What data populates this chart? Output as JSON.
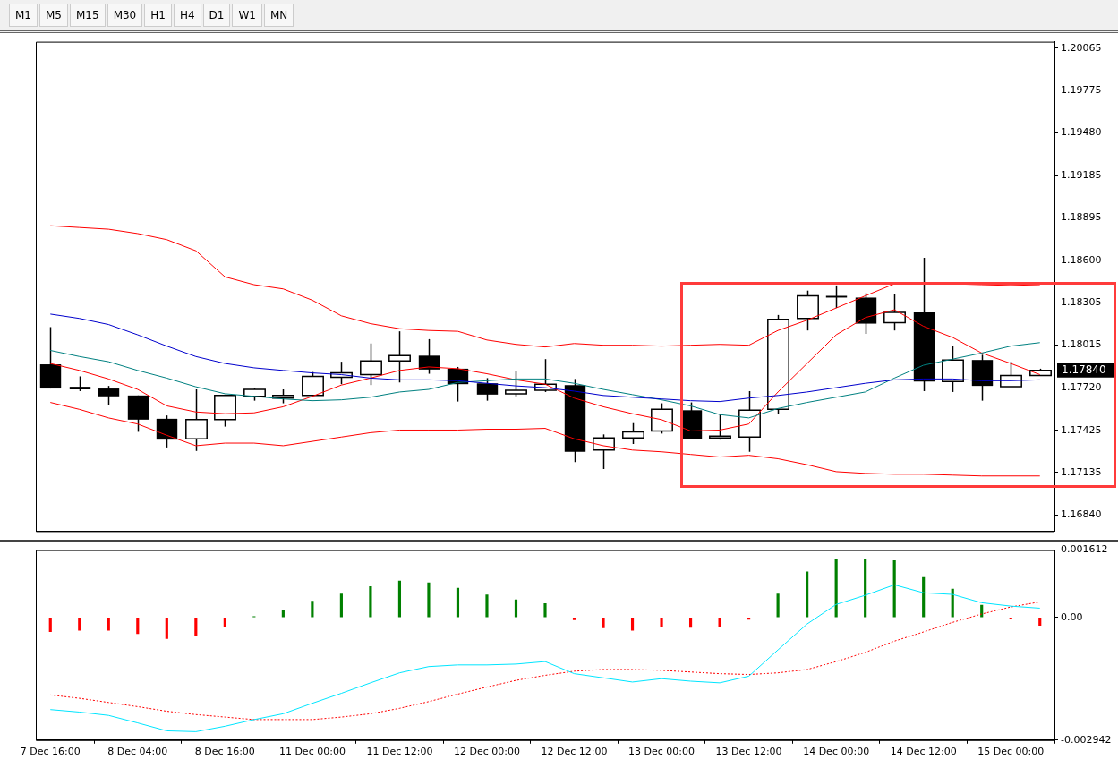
{
  "chart_data": [
    {
      "type": "candlestick",
      "annotations": [
        "M1",
        "M5",
        "M15",
        "M30",
        "H1",
        "H4",
        "D1",
        "W1",
        "MN"
      ],
      "categories": [
        null,
        null,
        null,
        null,
        null,
        null,
        null,
        null,
        null,
        null,
        null,
        null,
        null,
        null,
        null,
        null,
        null,
        null,
        null,
        null,
        null,
        null,
        null,
        null,
        null,
        null,
        null,
        null,
        null,
        null,
        null,
        null,
        null,
        null,
        null
      ],
      "ohlc": [
        [
          1.17882,
          1.18139,
          1.17715,
          1.17715
        ],
        [
          1.17727,
          1.17799,
          1.17697,
          1.17709
        ],
        [
          1.17715,
          1.17733,
          1.17601,
          1.17661
        ],
        [
          1.17667,
          1.17667,
          1.17416,
          1.175
        ],
        [
          1.17506,
          1.17529,
          1.17308,
          1.17362
        ],
        [
          1.17368,
          1.17709,
          1.17284,
          1.175
        ],
        [
          1.175,
          1.17673,
          1.17452,
          1.17667
        ],
        [
          1.17661,
          1.17715,
          1.17631,
          1.17709
        ],
        [
          1.17649,
          1.17709,
          1.17613,
          1.17667
        ],
        [
          1.17667,
          1.17829,
          1.17667,
          1.17799
        ],
        [
          1.17793,
          1.179,
          1.17745,
          1.17823
        ],
        [
          1.17811,
          1.18026,
          1.17739,
          1.17906
        ],
        [
          1.17906,
          1.1811,
          1.17757,
          1.17942
        ],
        [
          1.17942,
          1.18056,
          1.17817,
          1.17846
        ],
        [
          1.17852,
          1.17864,
          1.17625,
          1.17745
        ],
        [
          1.17751,
          1.17787,
          1.17631,
          1.17673
        ],
        [
          1.17679,
          1.17835,
          1.17661,
          1.17703
        ],
        [
          1.17703,
          1.17918,
          1.17691,
          1.17745
        ],
        [
          1.17739,
          1.17781,
          1.17207,
          1.17278
        ],
        [
          1.1729,
          1.17398,
          1.17159,
          1.17374
        ],
        [
          1.17374,
          1.17476,
          1.17332,
          1.17416
        ],
        [
          1.17422,
          1.17613,
          1.17404,
          1.17571
        ],
        [
          1.17565,
          1.17619,
          1.17368,
          1.17368
        ],
        [
          1.17374,
          1.17535,
          1.17362,
          1.17386
        ],
        [
          1.1738,
          1.17697,
          1.17278,
          1.17565
        ],
        [
          1.17571,
          1.18223,
          1.17541,
          1.18193
        ],
        [
          1.18199,
          1.18391,
          1.18116,
          1.18355
        ],
        [
          1.18355,
          1.18427,
          1.18271,
          1.18343
        ],
        [
          1.18343,
          1.18373,
          1.18092,
          1.18163
        ],
        [
          1.18169,
          1.18367,
          1.18116,
          1.18241
        ],
        [
          1.18241,
          1.18618,
          1.17697,
          1.17763
        ],
        [
          1.17763,
          1.18008,
          1.17691,
          1.17912
        ],
        [
          1.17912,
          1.17948,
          1.17631,
          1.17733
        ],
        [
          1.17727,
          1.179,
          1.17727,
          1.17805
        ],
        [
          1.17805,
          1.17852,
          1.17805,
          1.1784
        ]
      ],
      "series": [
        {
          "type": "line",
          "color": "#ff0000",
          "values": [
            1.18839,
            1.18827,
            1.18815,
            1.18785,
            1.18743,
            1.18666,
            1.18486,
            1.18432,
            1.18403,
            1.18325,
            1.18217,
            1.18163,
            1.18128,
            1.18116,
            1.1811,
            1.1805,
            1.1802,
            1.18002,
            1.18026,
            1.18014,
            1.18014,
            1.18008,
            1.18014,
            1.1802,
            1.18014,
            1.18116,
            1.18187,
            1.18271,
            1.18355,
            1.18438,
            1.18438,
            1.18438,
            1.18432,
            1.18427,
            1.18432
          ]
        },
        {
          "type": "line",
          "color": "#ff0000",
          "values": [
            1.17619,
            1.17571,
            1.17512,
            1.1747,
            1.17392,
            1.1732,
            1.17338,
            1.17338,
            1.1732,
            1.1735,
            1.1738,
            1.1741,
            1.17428,
            1.17428,
            1.17428,
            1.17434,
            1.17434,
            1.1744,
            1.17368,
            1.1732,
            1.1729,
            1.17278,
            1.1726,
            1.17242,
            1.17254,
            1.1723,
            1.17189,
            1.17141,
            1.17129,
            1.17123,
            1.17123,
            1.17117,
            1.17111,
            1.17111,
            1.17111
          ]
        },
        {
          "type": "line",
          "color": "#0000cc",
          "values": [
            1.18229,
            1.18199,
            1.18157,
            1.18086,
            1.18008,
            1.17936,
            1.17888,
            1.17858,
            1.1784,
            1.17823,
            1.17811,
            1.17787,
            1.17775,
            1.17775,
            1.17769,
            1.17751,
            1.17733,
            1.17721,
            1.17697,
            1.17667,
            1.17655,
            1.17643,
            1.17631,
            1.17625,
            1.17649,
            1.17667,
            1.17691,
            1.17721,
            1.17751,
            1.17775,
            1.17781,
            1.17781,
            1.17769,
            1.17769,
            1.17775
          ]
        },
        {
          "type": "line",
          "color": "#008080",
          "values": [
            1.17978,
            1.17936,
            1.179,
            1.1784,
            1.17787,
            1.17727,
            1.17679,
            1.17661,
            1.17643,
            1.17631,
            1.17637,
            1.17655,
            1.17691,
            1.17709,
            1.17757,
            1.17769,
            1.17781,
            1.17781,
            1.17751,
            1.17709,
            1.17673,
            1.17637,
            1.17595,
            1.17535,
            1.17512,
            1.17577,
            1.17619,
            1.17655,
            1.17691,
            1.17787,
            1.17876,
            1.17918,
            1.1796,
            1.18008,
            1.18032
          ]
        },
        {
          "type": "line",
          "color": "#ff0000",
          "values": [
            1.17888,
            1.1784,
            1.17781,
            1.17709,
            1.17595,
            1.17553,
            1.17541,
            1.17547,
            1.17589,
            1.17661,
            1.17739,
            1.17787,
            1.1784,
            1.17864,
            1.17852,
            1.17817,
            1.17775,
            1.17745,
            1.17649,
            1.17589,
            1.17541,
            1.175,
            1.17422,
            1.17428,
            1.1747,
            1.17691,
            1.17888,
            1.18086,
            1.18205,
            1.18259,
            1.18145,
            1.18068,
            1.1796,
            1.17888,
            1.17811
          ]
        }
      ],
      "ylim": [
        1.1673,
        1.2011
      ],
      "yticks": [
        1.20065,
        1.19775,
        {
          "value": 1.1948,
          "label": "1.19480"
        },
        1.19185,
        1.18895,
        {
          "value": 1.186,
          "label": "1.18600"
        },
        1.18305,
        1.18015,
        {
          "value": 1.1772,
          "label": "1.17720"
        },
        1.17425,
        1.17135,
        {
          "value": 1.1684,
          "label": "1.16840"
        }
      ],
      "ref_lines": [
        {
          "axis": "y",
          "value": 1.1784,
          "label": "1.17840",
          "color": "#c0c0c0"
        }
      ],
      "tick_labels": "y",
      "marker": "none"
    },
    {
      "type": "bar",
      "categories": [
        "7 Dec 16:00",
        null,
        null,
        "8 Dec 04:00",
        null,
        null,
        "8 Dec 16:00",
        null,
        null,
        "11 Dec 00:00",
        null,
        null,
        "11 Dec 12:00",
        null,
        null,
        "12 Dec 00:00",
        null,
        null,
        "12 Dec 12:00",
        null,
        null,
        "13 Dec 00:00",
        null,
        null,
        "13 Dec 12:00",
        null,
        null,
        "14 Dec 00:00",
        null,
        null,
        "14 Dec 12:00",
        null,
        null,
        "15 Dec 00:00",
        null
      ],
      "series": [
        {
          "type": "bar",
          "values": [
            -0.00034,
            -0.00031,
            -0.00031,
            -0.00039,
            -0.00051,
            -0.00045,
            -0.00023,
            2e-05,
            0.00017,
            0.00039,
            0.00056,
            0.00074,
            0.00087,
            0.00083,
            0.0007,
            0.00054,
            0.00042,
            0.00033,
            -6e-05,
            -0.00025,
            -0.00031,
            -0.00022,
            -0.00024,
            -0.00022,
            -5e-05,
            0.00056,
            0.00109,
            0.00139,
            0.00139,
            0.00136,
            0.00096,
            0.00068,
            0.00029,
            -2e-05,
            -0.00019
          ],
          "colors": [
            "#ff0000",
            "#ff0000",
            "#ff0000",
            "#ff0000",
            "#ff0000",
            "#ff0000",
            "#ff0000",
            "#008000",
            "#008000",
            "#008000",
            "#008000",
            "#008000",
            "#008000",
            "#008000",
            "#008000",
            "#008000",
            "#008000",
            "#008000",
            "#ff0000",
            "#ff0000",
            "#ff0000",
            "#ff0000",
            "#ff0000",
            "#ff0000",
            "#ff0000",
            "#008000",
            "#008000",
            "#008000",
            "#008000",
            "#008000",
            "#008000",
            "#008000",
            "#008000",
            "#ff0000",
            "#ff0000"
          ]
        },
        {
          "type": "line",
          "color": "#00e5ff",
          "values": [
            -0.00221,
            -0.00227,
            -0.00235,
            -0.00253,
            -0.00272,
            -0.00274,
            -0.00261,
            -0.00245,
            -0.00231,
            -0.00206,
            -0.00182,
            -0.00157,
            -0.00133,
            -0.00118,
            -0.00114,
            -0.00114,
            -0.00112,
            -0.00106,
            -0.00135,
            -0.00145,
            -0.00155,
            -0.00147,
            -0.00153,
            -0.00157,
            -0.00141,
            -0.00078,
            -0.00016,
            0.00031,
            0.00053,
            0.00078,
            0.00059,
            0.00055,
            0.00035,
            0.00027,
            0.00022
          ]
        },
        {
          "type": "line",
          "color": "#ff0000",
          "line_style": "dotted",
          "values": [
            -0.00186,
            -0.00194,
            -0.00204,
            -0.00214,
            -0.00225,
            -0.00233,
            -0.00239,
            -0.00245,
            -0.00245,
            -0.00245,
            -0.00239,
            -0.00231,
            -0.00218,
            -0.00202,
            -0.00184,
            -0.00167,
            -0.00151,
            -0.00139,
            -0.00129,
            -0.00125,
            -0.00125,
            -0.00127,
            -0.00131,
            -0.00135,
            -0.00137,
            -0.00133,
            -0.00125,
            -0.00106,
            -0.00084,
            -0.00057,
            -0.00035,
            -0.00012,
            8e-05,
            0.00025,
            0.00037
          ]
        }
      ],
      "ylim": [
        -0.002942,
        0.001612
      ],
      "yticks": [
        0.001612,
        {
          "value": 0,
          "label": "0.00"
        },
        -0.002942
      ],
      "marker": "none"
    }
  ]
}
